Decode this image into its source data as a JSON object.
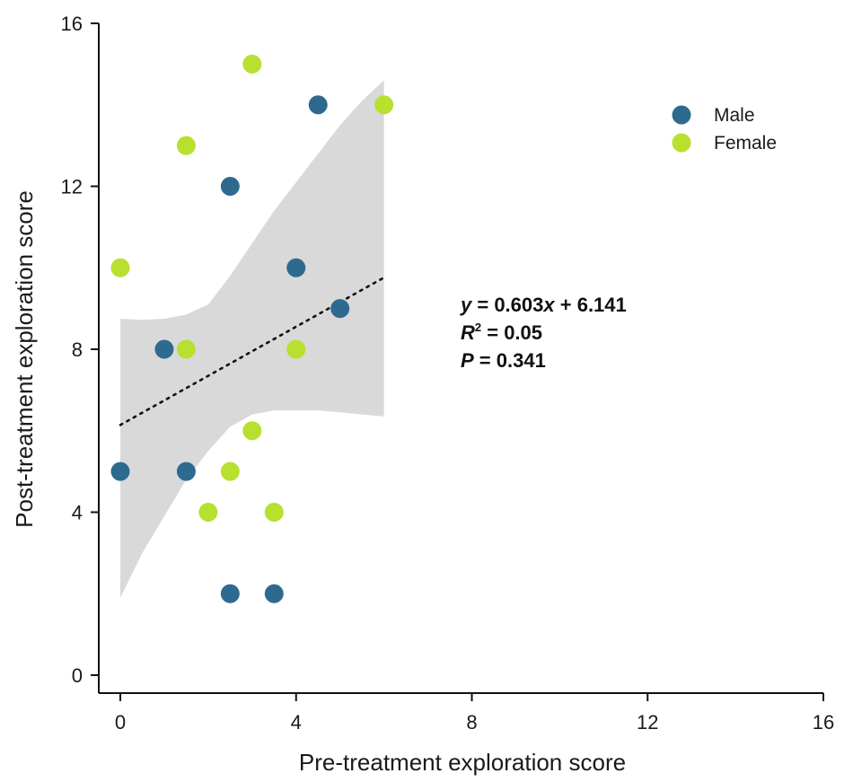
{
  "chart_data": {
    "type": "scatter",
    "xlabel": "Pre-treatment exploration score",
    "ylabel": "Post-treatment exploration score",
    "xlim": [
      0,
      16
    ],
    "ylim": [
      0,
      16
    ],
    "xticks": [
      0,
      4,
      8,
      12,
      16
    ],
    "yticks": [
      0,
      4,
      8,
      12,
      16
    ],
    "grid": false,
    "legend_position": "top-right",
    "series": [
      {
        "name": "Male",
        "color": "#2e6a8f",
        "points": [
          [
            0,
            5
          ],
          [
            1,
            8
          ],
          [
            1.5,
            5
          ],
          [
            2.5,
            12
          ],
          [
            2.5,
            2
          ],
          [
            3.5,
            2
          ],
          [
            4,
            10
          ],
          [
            4.5,
            14
          ],
          [
            5,
            9
          ]
        ]
      },
      {
        "name": "Female",
        "color": "#b7e02f",
        "points": [
          [
            0,
            10
          ],
          [
            1.5,
            13
          ],
          [
            1.5,
            8
          ],
          [
            2,
            4
          ],
          [
            2.5,
            5
          ],
          [
            3,
            15
          ],
          [
            3,
            6
          ],
          [
            3.5,
            4
          ],
          [
            4,
            8
          ],
          [
            6,
            14
          ]
        ]
      }
    ],
    "regression": {
      "slope": 0.603,
      "intercept": 6.141,
      "x_range": [
        0,
        6
      ],
      "line_style": "dotted",
      "confidence_band": {
        "color": "#d9d9d9",
        "x": [
          0,
          0.5,
          1,
          1.5,
          2,
          2.5,
          3,
          3.5,
          4,
          4.5,
          5,
          5.5,
          6
        ],
        "upper": [
          8.75,
          8.72,
          8.75,
          8.85,
          9.1,
          9.8,
          10.6,
          11.4,
          12.1,
          12.8,
          13.5,
          14.1,
          14.6
        ],
        "lower": [
          1.9,
          3.0,
          3.9,
          4.8,
          5.5,
          6.1,
          6.4,
          6.5,
          6.5,
          6.5,
          6.45,
          6.4,
          6.35
        ]
      }
    },
    "annotation": {
      "line1_var": "y",
      "line1_eq": " = 0.603",
      "line1_x": "x",
      "line1_rest": " + 6.141",
      "line2_var": "R",
      "line2_sup": "2",
      "line2_rest": " = 0.05",
      "line3_var": "P",
      "line3_rest": " = 0.341"
    }
  }
}
